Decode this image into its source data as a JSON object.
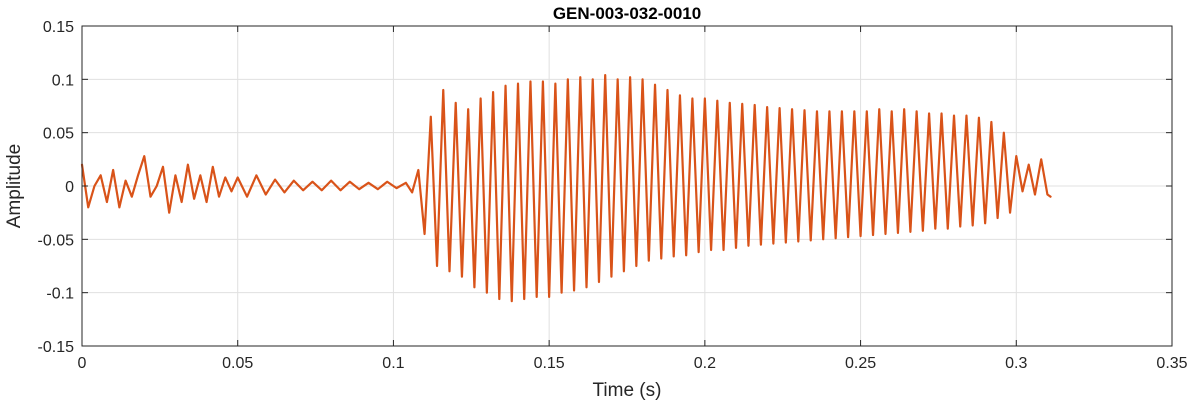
{
  "chart_data": {
    "type": "line",
    "title": "GEN-003-032-0010",
    "xlabel": "Time (s)",
    "ylabel": "Amplitude",
    "xlim": [
      0,
      0.35
    ],
    "ylim": [
      -0.15,
      0.15
    ],
    "xticks": [
      0,
      0.05,
      0.1,
      0.15,
      0.2,
      0.25,
      0.3,
      0.35
    ],
    "yticks": [
      -0.15,
      -0.1,
      -0.05,
      0,
      0.05,
      0.1,
      0.15
    ],
    "xtick_labels": [
      "0",
      "0.05",
      "0.1",
      "0.15",
      "0.2",
      "0.25",
      "0.3",
      "0.35"
    ],
    "ytick_labels": [
      "-0.15",
      "-0.1",
      "-0.05",
      "0",
      "0.05",
      "0.1",
      "0.15"
    ],
    "grid": true,
    "line_color": "#D95319",
    "series": [
      {
        "name": "",
        "description_of_shape": "",
        "x": [
          0,
          0.002,
          0.004,
          0.006,
          0.008,
          0.01,
          0.012,
          0.014,
          0.016,
          0.018,
          0.02,
          0.022,
          0.024,
          0.026,
          0.028,
          0.03,
          0.032,
          0.034,
          0.036,
          0.038,
          0.04,
          0.042,
          0.044,
          0.046,
          0.048,
          0.05,
          0.053,
          0.056,
          0.059,
          0.062,
          0.065,
          0.068,
          0.071,
          0.074,
          0.077,
          0.08,
          0.083,
          0.086,
          0.089,
          0.092,
          0.095,
          0.098,
          0.101,
          0.104,
          0.106,
          0.108,
          0.11,
          0.112,
          0.114,
          0.116,
          0.118,
          0.12,
          0.122,
          0.124,
          0.126,
          0.128,
          0.13,
          0.132,
          0.134,
          0.136,
          0.138,
          0.14,
          0.142,
          0.144,
          0.146,
          0.148,
          0.15,
          0.152,
          0.154,
          0.156,
          0.158,
          0.16,
          0.162,
          0.164,
          0.166,
          0.168,
          0.17,
          0.172,
          0.174,
          0.176,
          0.178,
          0.18,
          0.182,
          0.184,
          0.186,
          0.188,
          0.19,
          0.192,
          0.194,
          0.196,
          0.198,
          0.2,
          0.202,
          0.204,
          0.206,
          0.208,
          0.21,
          0.212,
          0.214,
          0.216,
          0.218,
          0.22,
          0.222,
          0.224,
          0.226,
          0.228,
          0.23,
          0.232,
          0.234,
          0.236,
          0.238,
          0.24,
          0.242,
          0.244,
          0.246,
          0.248,
          0.25,
          0.252,
          0.254,
          0.256,
          0.258,
          0.26,
          0.262,
          0.264,
          0.266,
          0.268,
          0.27,
          0.272,
          0.274,
          0.276,
          0.278,
          0.28,
          0.282,
          0.284,
          0.286,
          0.288,
          0.29,
          0.292,
          0.294,
          0.296,
          0.298,
          0.3,
          0.302,
          0.304,
          0.306,
          0.308,
          0.31,
          0.311
        ],
        "y": [
          0.02,
          -0.02,
          0.0,
          0.01,
          -0.015,
          0.015,
          -0.02,
          0.005,
          -0.01,
          0.01,
          0.028,
          -0.01,
          0.0,
          0.018,
          -0.025,
          0.01,
          -0.015,
          0.02,
          -0.012,
          0.01,
          -0.015,
          0.018,
          -0.01,
          0.008,
          -0.005,
          0.008,
          -0.01,
          0.01,
          -0.008,
          0.006,
          -0.006,
          0.005,
          -0.004,
          0.004,
          -0.004,
          0.005,
          -0.004,
          0.004,
          -0.003,
          0.003,
          -0.003,
          0.004,
          -0.002,
          0.003,
          -0.006,
          0.015,
          -0.045,
          0.065,
          -0.075,
          0.09,
          -0.08,
          0.078,
          -0.085,
          0.072,
          -0.095,
          0.082,
          -0.1,
          0.088,
          -0.106,
          0.094,
          -0.108,
          0.096,
          -0.106,
          0.098,
          -0.104,
          0.098,
          -0.104,
          0.096,
          -0.1,
          0.1,
          -0.098,
          0.102,
          -0.095,
          0.1,
          -0.09,
          0.104,
          -0.085,
          0.1,
          -0.08,
          0.102,
          -0.075,
          0.1,
          -0.07,
          0.095,
          -0.068,
          0.09,
          -0.066,
          0.085,
          -0.065,
          0.082,
          -0.062,
          0.082,
          -0.06,
          0.08,
          -0.06,
          0.078,
          -0.058,
          0.077,
          -0.056,
          0.076,
          -0.055,
          0.074,
          -0.054,
          0.073,
          -0.053,
          0.072,
          -0.052,
          0.071,
          -0.051,
          0.07,
          -0.05,
          0.07,
          -0.049,
          0.07,
          -0.048,
          0.07,
          -0.047,
          0.07,
          -0.046,
          0.072,
          -0.045,
          0.07,
          -0.044,
          0.072,
          -0.043,
          0.07,
          -0.042,
          0.068,
          -0.04,
          0.068,
          -0.04,
          0.066,
          -0.038,
          0.066,
          -0.037,
          0.064,
          -0.035,
          0.06,
          -0.03,
          0.05,
          -0.025,
          0.028,
          -0.005,
          0.02,
          -0.008,
          0.025,
          -0.008,
          -0.01
        ]
      }
    ]
  }
}
